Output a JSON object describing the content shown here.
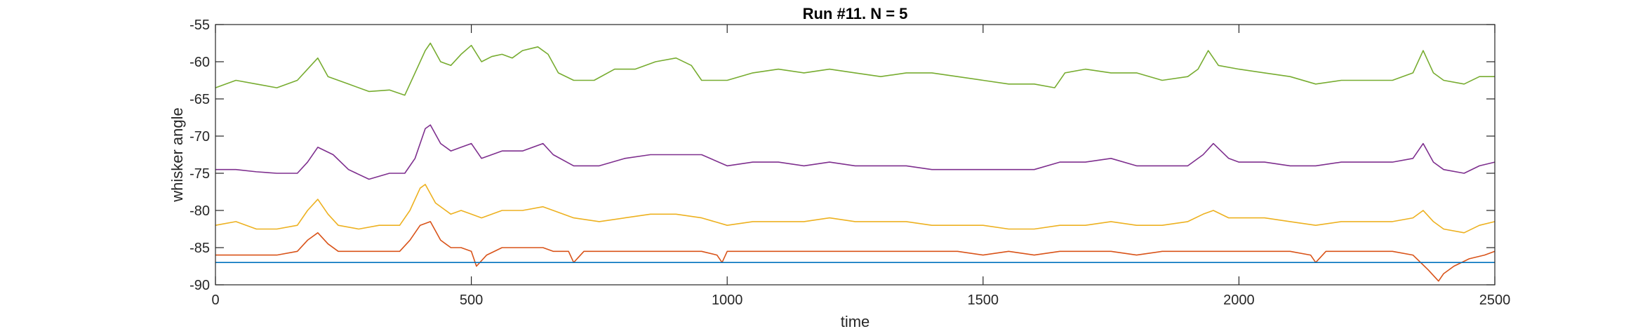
{
  "chart_data": {
    "type": "line",
    "title": "Run #11. N = 5",
    "xlabel": "time",
    "ylabel": "whisker angle",
    "xlim": [
      0,
      2500
    ],
    "ylim": [
      -90,
      -55
    ],
    "xticks": [
      "0",
      "500",
      "1000",
      "1500",
      "2000",
      "2500"
    ],
    "yticks": [
      "-90",
      "-85",
      "-80",
      "-75",
      "-70",
      "-65",
      "-60",
      "-55"
    ],
    "grid": false,
    "legend": "none",
    "series": [
      {
        "color": "#77AC30",
        "points": [
          [
            0,
            -63.5
          ],
          [
            40,
            -62.5
          ],
          [
            80,
            -63
          ],
          [
            120,
            -63.5
          ],
          [
            160,
            -62.5
          ],
          [
            180,
            -61
          ],
          [
            200,
            -59.5
          ],
          [
            220,
            -62
          ],
          [
            240,
            -62.5
          ],
          [
            260,
            -63
          ],
          [
            300,
            -64
          ],
          [
            340,
            -63.8
          ],
          [
            370,
            -64.5
          ],
          [
            390,
            -61.5
          ],
          [
            410,
            -58.5
          ],
          [
            420,
            -57.5
          ],
          [
            440,
            -60
          ],
          [
            460,
            -60.5
          ],
          [
            480,
            -59
          ],
          [
            500,
            -57.8
          ],
          [
            520,
            -60
          ],
          [
            540,
            -59.3
          ],
          [
            560,
            -59
          ],
          [
            580,
            -59.5
          ],
          [
            600,
            -58.5
          ],
          [
            630,
            -58
          ],
          [
            650,
            -59
          ],
          [
            670,
            -61.5
          ],
          [
            700,
            -62.5
          ],
          [
            740,
            -62.5
          ],
          [
            780,
            -61
          ],
          [
            820,
            -61
          ],
          [
            860,
            -60
          ],
          [
            900,
            -59.5
          ],
          [
            930,
            -60.5
          ],
          [
            950,
            -62.5
          ],
          [
            1000,
            -62.5
          ],
          [
            1050,
            -61.5
          ],
          [
            1100,
            -61
          ],
          [
            1150,
            -61.5
          ],
          [
            1200,
            -61
          ],
          [
            1250,
            -61.5
          ],
          [
            1300,
            -62
          ],
          [
            1350,
            -61.5
          ],
          [
            1400,
            -61.5
          ],
          [
            1450,
            -62
          ],
          [
            1500,
            -62.5
          ],
          [
            1550,
            -63
          ],
          [
            1600,
            -63
          ],
          [
            1640,
            -63.5
          ],
          [
            1660,
            -61.5
          ],
          [
            1700,
            -61
          ],
          [
            1750,
            -61.5
          ],
          [
            1800,
            -61.5
          ],
          [
            1850,
            -62.5
          ],
          [
            1900,
            -62
          ],
          [
            1920,
            -61
          ],
          [
            1940,
            -58.5
          ],
          [
            1960,
            -60.5
          ],
          [
            2000,
            -61
          ],
          [
            2050,
            -61.5
          ],
          [
            2100,
            -62
          ],
          [
            2150,
            -63
          ],
          [
            2200,
            -62.5
          ],
          [
            2250,
            -62.5
          ],
          [
            2300,
            -62.5
          ],
          [
            2340,
            -61.5
          ],
          [
            2360,
            -58.5
          ],
          [
            2380,
            -61.5
          ],
          [
            2400,
            -62.5
          ],
          [
            2440,
            -63
          ],
          [
            2470,
            -62
          ],
          [
            2500,
            -62
          ]
        ]
      },
      {
        "color": "#7E2F8E",
        "points": [
          [
            0,
            -74.5
          ],
          [
            40,
            -74.5
          ],
          [
            80,
            -74.8
          ],
          [
            120,
            -75
          ],
          [
            160,
            -75
          ],
          [
            180,
            -73.5
          ],
          [
            200,
            -71.5
          ],
          [
            230,
            -72.5
          ],
          [
            260,
            -74.5
          ],
          [
            300,
            -75.8
          ],
          [
            340,
            -75
          ],
          [
            370,
            -75
          ],
          [
            390,
            -73
          ],
          [
            410,
            -69
          ],
          [
            420,
            -68.5
          ],
          [
            440,
            -71
          ],
          [
            460,
            -72
          ],
          [
            480,
            -71.5
          ],
          [
            500,
            -71
          ],
          [
            520,
            -73
          ],
          [
            560,
            -72
          ],
          [
            600,
            -72
          ],
          [
            640,
            -71
          ],
          [
            660,
            -72.5
          ],
          [
            700,
            -74
          ],
          [
            750,
            -74
          ],
          [
            800,
            -73
          ],
          [
            850,
            -72.5
          ],
          [
            900,
            -72.5
          ],
          [
            950,
            -72.5
          ],
          [
            1000,
            -74
          ],
          [
            1050,
            -73.5
          ],
          [
            1100,
            -73.5
          ],
          [
            1150,
            -74
          ],
          [
            1200,
            -73.5
          ],
          [
            1250,
            -74
          ],
          [
            1300,
            -74
          ],
          [
            1350,
            -74
          ],
          [
            1400,
            -74.5
          ],
          [
            1450,
            -74.5
          ],
          [
            1500,
            -74.5
          ],
          [
            1550,
            -74.5
          ],
          [
            1600,
            -74.5
          ],
          [
            1650,
            -73.5
          ],
          [
            1700,
            -73.5
          ],
          [
            1750,
            -73
          ],
          [
            1800,
            -74
          ],
          [
            1850,
            -74
          ],
          [
            1900,
            -74
          ],
          [
            1930,
            -72.5
          ],
          [
            1950,
            -71
          ],
          [
            1980,
            -73
          ],
          [
            2000,
            -73.5
          ],
          [
            2050,
            -73.5
          ],
          [
            2100,
            -74
          ],
          [
            2150,
            -74
          ],
          [
            2200,
            -73.5
          ],
          [
            2250,
            -73.5
          ],
          [
            2300,
            -73.5
          ],
          [
            2340,
            -73
          ],
          [
            2360,
            -71
          ],
          [
            2380,
            -73.5
          ],
          [
            2400,
            -74.5
          ],
          [
            2440,
            -75
          ],
          [
            2470,
            -74
          ],
          [
            2500,
            -73.5
          ]
        ]
      },
      {
        "color": "#EDB120",
        "points": [
          [
            0,
            -82
          ],
          [
            40,
            -81.5
          ],
          [
            80,
            -82.5
          ],
          [
            120,
            -82.5
          ],
          [
            160,
            -82
          ],
          [
            180,
            -80
          ],
          [
            200,
            -78.5
          ],
          [
            220,
            -80.5
          ],
          [
            240,
            -82
          ],
          [
            280,
            -82.5
          ],
          [
            320,
            -82
          ],
          [
            360,
            -82
          ],
          [
            380,
            -80
          ],
          [
            400,
            -77
          ],
          [
            410,
            -76.5
          ],
          [
            430,
            -79
          ],
          [
            460,
            -80.5
          ],
          [
            480,
            -80
          ],
          [
            500,
            -80.5
          ],
          [
            520,
            -81
          ],
          [
            560,
            -80
          ],
          [
            600,
            -80
          ],
          [
            640,
            -79.5
          ],
          [
            660,
            -80
          ],
          [
            700,
            -81
          ],
          [
            750,
            -81.5
          ],
          [
            800,
            -81
          ],
          [
            850,
            -80.5
          ],
          [
            900,
            -80.5
          ],
          [
            950,
            -81
          ],
          [
            1000,
            -82
          ],
          [
            1050,
            -81.5
          ],
          [
            1100,
            -81.5
          ],
          [
            1150,
            -81.5
          ],
          [
            1200,
            -81
          ],
          [
            1250,
            -81.5
          ],
          [
            1300,
            -81.5
          ],
          [
            1350,
            -81.5
          ],
          [
            1400,
            -82
          ],
          [
            1450,
            -82
          ],
          [
            1500,
            -82
          ],
          [
            1550,
            -82.5
          ],
          [
            1600,
            -82.5
          ],
          [
            1650,
            -82
          ],
          [
            1700,
            -82
          ],
          [
            1750,
            -81.5
          ],
          [
            1800,
            -82
          ],
          [
            1850,
            -82
          ],
          [
            1900,
            -81.5
          ],
          [
            1930,
            -80.5
          ],
          [
            1950,
            -80
          ],
          [
            1980,
            -81
          ],
          [
            2000,
            -81
          ],
          [
            2050,
            -81
          ],
          [
            2100,
            -81.5
          ],
          [
            2150,
            -82
          ],
          [
            2200,
            -81.5
          ],
          [
            2250,
            -81.5
          ],
          [
            2300,
            -81.5
          ],
          [
            2340,
            -81
          ],
          [
            2360,
            -80
          ],
          [
            2380,
            -81.5
          ],
          [
            2400,
            -82.5
          ],
          [
            2440,
            -83
          ],
          [
            2470,
            -82
          ],
          [
            2500,
            -81.5
          ]
        ]
      },
      {
        "color": "#D95319",
        "points": [
          [
            0,
            -86
          ],
          [
            40,
            -86
          ],
          [
            80,
            -86
          ],
          [
            120,
            -86
          ],
          [
            160,
            -85.5
          ],
          [
            180,
            -84
          ],
          [
            200,
            -83
          ],
          [
            220,
            -84.5
          ],
          [
            240,
            -85.5
          ],
          [
            280,
            -85.5
          ],
          [
            320,
            -85.5
          ],
          [
            360,
            -85.5
          ],
          [
            380,
            -84
          ],
          [
            400,
            -82
          ],
          [
            420,
            -81.5
          ],
          [
            440,
            -84
          ],
          [
            460,
            -85
          ],
          [
            480,
            -85
          ],
          [
            500,
            -85.5
          ],
          [
            510,
            -87.5
          ],
          [
            530,
            -86
          ],
          [
            560,
            -85
          ],
          [
            600,
            -85
          ],
          [
            640,
            -85
          ],
          [
            660,
            -85.5
          ],
          [
            690,
            -85.5
          ],
          [
            700,
            -87
          ],
          [
            720,
            -85.5
          ],
          [
            760,
            -85.5
          ],
          [
            800,
            -85.5
          ],
          [
            850,
            -85.5
          ],
          [
            900,
            -85.5
          ],
          [
            950,
            -85.5
          ],
          [
            980,
            -86
          ],
          [
            990,
            -87
          ],
          [
            1000,
            -85.5
          ],
          [
            1050,
            -85.5
          ],
          [
            1100,
            -85.5
          ],
          [
            1150,
            -85.5
          ],
          [
            1200,
            -85.5
          ],
          [
            1250,
            -85.5
          ],
          [
            1300,
            -85.5
          ],
          [
            1350,
            -85.5
          ],
          [
            1400,
            -85.5
          ],
          [
            1450,
            -85.5
          ],
          [
            1500,
            -86
          ],
          [
            1550,
            -85.5
          ],
          [
            1600,
            -86
          ],
          [
            1650,
            -85.5
          ],
          [
            1700,
            -85.5
          ],
          [
            1750,
            -85.5
          ],
          [
            1800,
            -86
          ],
          [
            1850,
            -85.5
          ],
          [
            1900,
            -85.5
          ],
          [
            1950,
            -85.5
          ],
          [
            2000,
            -85.5
          ],
          [
            2050,
            -85.5
          ],
          [
            2100,
            -85.5
          ],
          [
            2140,
            -86
          ],
          [
            2150,
            -87
          ],
          [
            2170,
            -85.5
          ],
          [
            2200,
            -85.5
          ],
          [
            2250,
            -85.5
          ],
          [
            2300,
            -85.5
          ],
          [
            2340,
            -86
          ],
          [
            2370,
            -88
          ],
          [
            2390,
            -89.5
          ],
          [
            2400,
            -88.5
          ],
          [
            2420,
            -87.5
          ],
          [
            2450,
            -86.5
          ],
          [
            2480,
            -86
          ],
          [
            2500,
            -85.5
          ]
        ]
      },
      {
        "color": "#0072BD",
        "points": [
          [
            0,
            -87
          ],
          [
            2500,
            -87
          ]
        ]
      }
    ]
  }
}
